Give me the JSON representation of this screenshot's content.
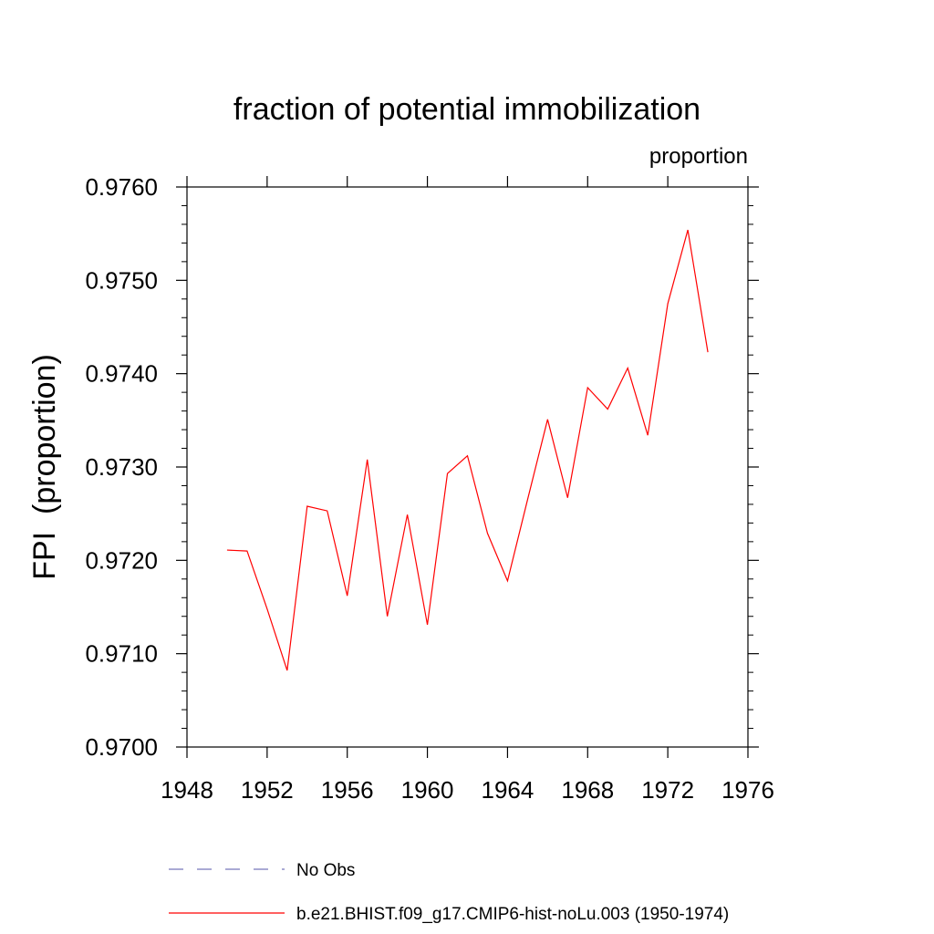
{
  "chart_data": {
    "type": "line",
    "title": "fraction of potential immobilization",
    "subtitle_right": "proportion",
    "ylabel": "FPI  (proportion)",
    "xlabel": "",
    "xlim": [
      1948,
      1976
    ],
    "ylim": [
      0.97,
      0.976
    ],
    "x_ticks": [
      1948,
      1952,
      1956,
      1960,
      1964,
      1968,
      1972,
      1976
    ],
    "x_tick_labels": [
      "1948",
      "1952",
      "1956",
      "1960",
      "1964",
      "1968",
      "1972",
      "1976"
    ],
    "y_ticks": [
      0.97,
      0.971,
      0.972,
      0.973,
      0.974,
      0.975,
      0.976
    ],
    "y_tick_labels": [
      "0.9700",
      "0.9710",
      "0.9720",
      "0.9730",
      "0.9740",
      "0.9750",
      "0.9760"
    ],
    "grid": false,
    "legend_position": "bottom",
    "series": [
      {
        "name": "b.e21.BHIST.f09_g17.CMIP6-hist-noLu.003 (1950-1974)",
        "color": "#ff0000",
        "style": "solid",
        "x": [
          1950,
          1951,
          1952,
          1953,
          1954,
          1955,
          1956,
          1957,
          1958,
          1959,
          1960,
          1961,
          1962,
          1963,
          1964,
          1965,
          1966,
          1967,
          1968,
          1969,
          1970,
          1971,
          1972,
          1973,
          1974
        ],
        "y": [
          0.97211,
          0.9721,
          0.97148,
          0.97082,
          0.97258,
          0.97253,
          0.97162,
          0.97308,
          0.9714,
          0.97249,
          0.97131,
          0.97293,
          0.97312,
          0.97229,
          0.97178,
          0.97265,
          0.97351,
          0.97267,
          0.97385,
          0.97362,
          0.97406,
          0.97334,
          0.97475,
          0.97554,
          0.97423
        ]
      }
    ],
    "legend": [
      {
        "label": "No Obs",
        "color": "#7777bb",
        "style": "dashed"
      },
      {
        "label": "b.e21.BHIST.f09_g17.CMIP6-hist-noLu.003 (1950-1974)",
        "color": "#ff0000",
        "style": "solid"
      }
    ]
  }
}
